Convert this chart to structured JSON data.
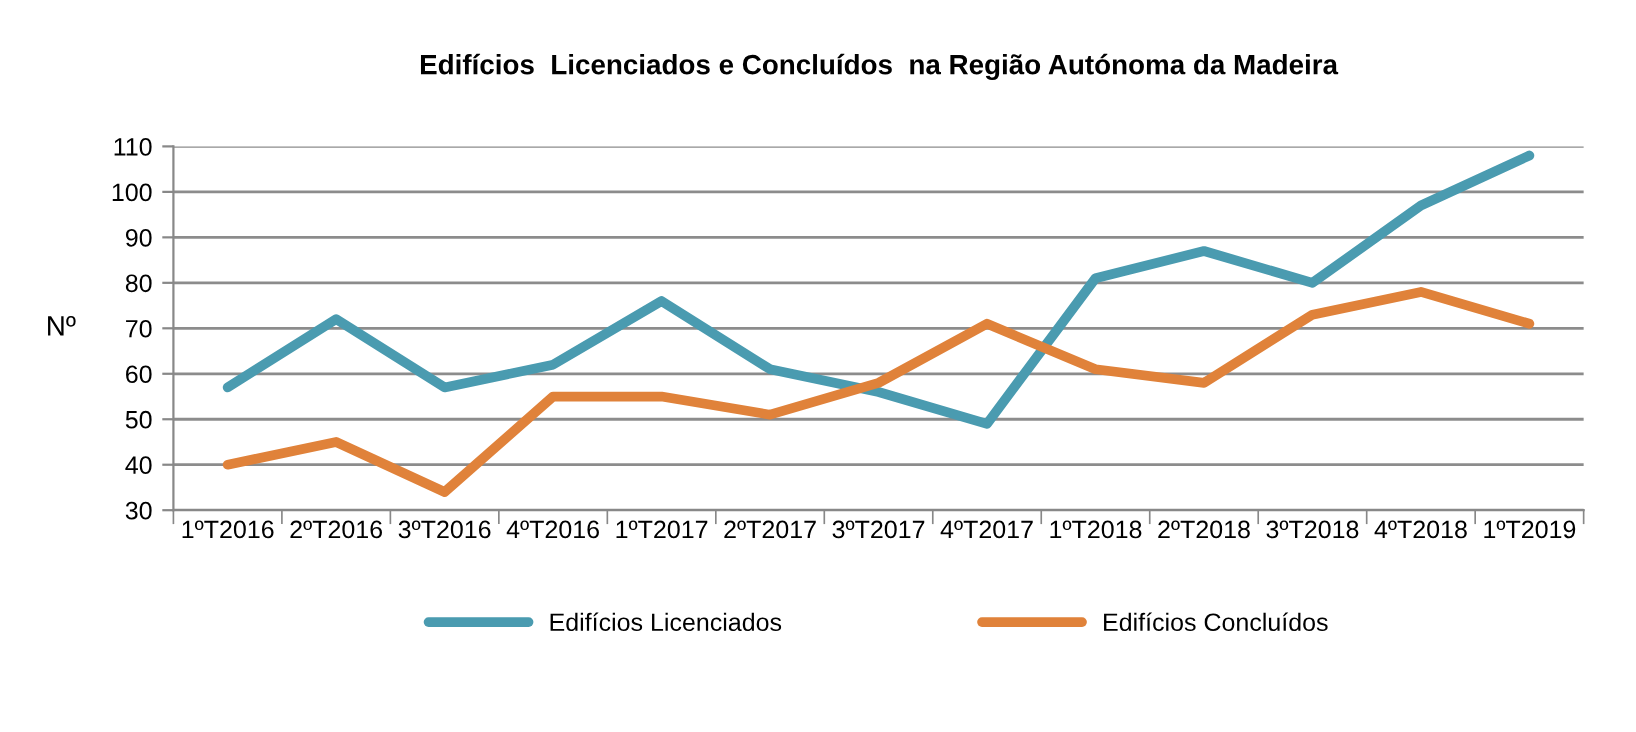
{
  "chart_data": {
    "type": "line",
    "title": "Edifícios  Licenciados e Concluídos  na Região Autónoma da Madeira",
    "ylabel": "Nº",
    "categories": [
      "1ºT2016",
      "2ºT2016",
      "3ºT2016",
      "4ºT2016",
      "1ºT2017",
      "2ºT2017",
      "3ºT2017",
      "4ºT2017",
      "1ºT2018",
      "2ºT2018",
      "3ºT2018",
      "4ºT2018",
      "1ºT2019"
    ],
    "series": [
      {
        "name": "Edifícios Licenciados",
        "color": "#4a9bb0",
        "values": [
          57,
          72,
          57,
          62,
          76,
          61,
          56,
          49,
          81,
          87,
          80,
          97,
          108
        ]
      },
      {
        "name": "Edifícios Concluídos",
        "color": "#e0823a",
        "values": [
          40,
          45,
          34,
          55,
          55,
          51,
          58,
          71,
          61,
          58,
          73,
          78,
          71
        ]
      }
    ],
    "ylim": [
      30,
      110
    ],
    "yticks": [
      30,
      40,
      50,
      60,
      70,
      80,
      90,
      100,
      110
    ],
    "grid": "y",
    "legend": "bottom",
    "marker": "none",
    "line_style": "solid"
  }
}
